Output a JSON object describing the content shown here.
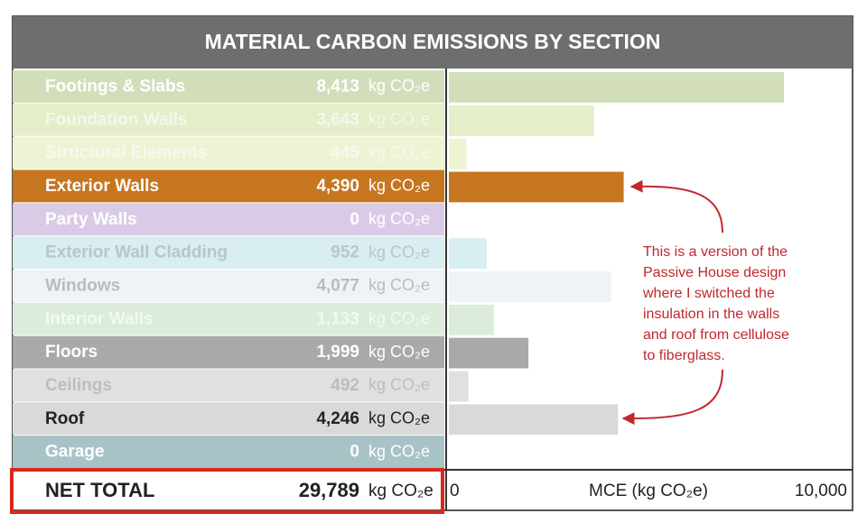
{
  "chart_data": {
    "type": "bar",
    "orientation": "horizontal",
    "title": "MATERIAL CARBON EMISSIONS BY SECTION",
    "unit": "kg CO₂e",
    "categories": [
      "Footings & Slabs",
      "Foundation Walls",
      "Structural Elements",
      "Exterior Walls",
      "Party Walls",
      "Exterior Wall Cladding",
      "Windows",
      "Interior Walls",
      "Floors",
      "Ceilings",
      "Roof",
      "Garage"
    ],
    "values": [
      8413,
      3643,
      445,
      4390,
      0,
      952,
      4077,
      1133,
      1999,
      492,
      4246,
      0
    ],
    "value_labels": [
      "8,413",
      "3,643",
      "445",
      "4,390",
      "0",
      "952",
      "4,077",
      "1,133",
      "1,999",
      "492",
      "4,246",
      "0"
    ],
    "colors": [
      "#d2deba",
      "#e4eec9",
      "#eef3d4",
      "#c6761f",
      "#d9cbe6",
      "#d8eef0",
      "#eef4f6",
      "#dcecdc",
      "#a9a9a9",
      "#e0e0e0",
      "#d9d9d9",
      "#a8c3c6"
    ],
    "label_colors": [
      "#ffffff",
      "#f4f7ec",
      "#f7f9ee",
      "#ffffff",
      "#ffffff",
      "#b9c6c6",
      "#b8bcbd",
      "#f3f8f3",
      "#ffffff",
      "#bdbdbd",
      "#222222",
      "#ffffff"
    ],
    "total_label": "NET TOTAL",
    "total": {
      "value": 29789,
      "label": "29,789"
    },
    "xlabel": "MCE (kg CO₂e)",
    "xlim": [
      0,
      10000
    ],
    "xticks": [
      0,
      {
        "value": 10000,
        "label": "10,000"
      }
    ],
    "annotation": [
      "This is a version of the",
      "Passive House design",
      "where I switched the",
      "insulation in the walls",
      "and roof from cellulose",
      "to fiberglass."
    ]
  }
}
